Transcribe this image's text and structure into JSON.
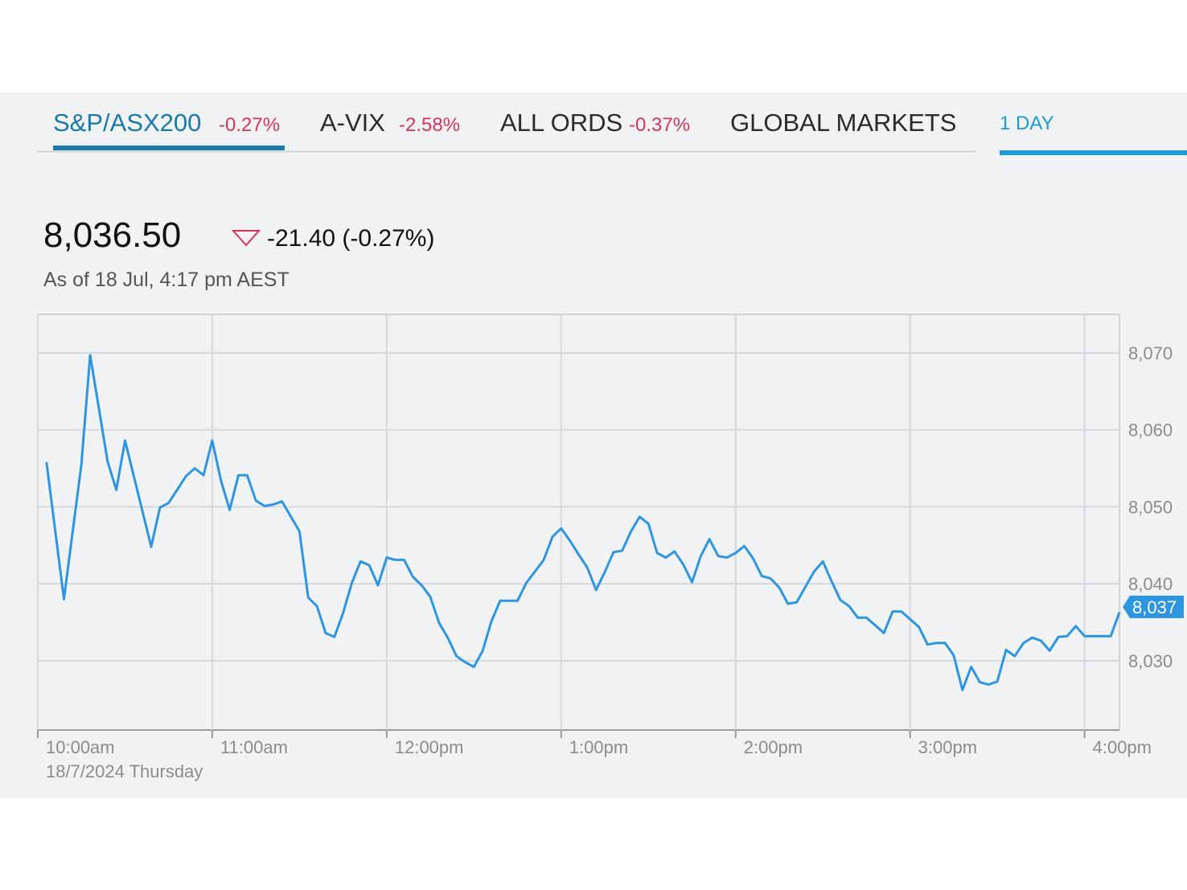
{
  "tabs": [
    {
      "name": "S&P/ASX200",
      "change": "-0.27%"
    },
    {
      "name": "A-VIX",
      "change": "-2.58%"
    },
    {
      "name": "ALL ORDS",
      "change": "-0.37%"
    },
    {
      "name": "GLOBAL MARKETS"
    }
  ],
  "range": "1 DAY",
  "quote": {
    "price": "8,036.50",
    "change": "-21.40 (-0.27%)",
    "as_of": "As of 18 Jul, 4:17 pm AEST"
  },
  "chart_data": {
    "type": "line",
    "date_label": "18/7/2024 Thursday",
    "color": "#2e95e0",
    "x": [
      "10:03",
      "10:09",
      "10:15",
      "10:18",
      "10:24",
      "10:27",
      "10:30",
      "10:36",
      "10:39",
      "10:42",
      "10:45",
      "10:51",
      "10:54",
      "10:57",
      "11:00",
      "11:03",
      "11:06",
      "11:09",
      "11:12",
      "11:15",
      "11:18",
      "11:21",
      "11:24",
      "11:30",
      "11:33",
      "11:36",
      "11:39",
      "11:42",
      "11:45",
      "11:48",
      "11:51",
      "11:54",
      "11:57",
      "12:00",
      "12:03",
      "12:06",
      "12:09",
      "12:12",
      "12:15",
      "12:18",
      "12:21",
      "12:24",
      "12:27",
      "12:30",
      "12:33",
      "12:36",
      "12:39",
      "12:42",
      "12:45",
      "12:48",
      "12:51",
      "12:54",
      "12:57",
      "13:00",
      "13:03",
      "13:06",
      "13:09",
      "13:12",
      "13:15",
      "13:18",
      "13:21",
      "13:24",
      "13:27",
      "13:30",
      "13:33",
      "13:36",
      "13:39",
      "13:42",
      "13:45",
      "13:48",
      "13:51",
      "13:54",
      "13:57",
      "14:00",
      "14:03",
      "14:06",
      "14:09",
      "14:12",
      "14:15",
      "14:18",
      "14:21",
      "14:24",
      "14:27",
      "14:30",
      "14:33",
      "14:36",
      "14:39",
      "14:42",
      "14:45",
      "14:48",
      "14:51",
      "14:54",
      "14:57",
      "15:00",
      "15:03",
      "15:06",
      "15:09",
      "15:12",
      "15:15",
      "15:18",
      "15:21",
      "15:24",
      "15:27",
      "15:30",
      "15:33",
      "15:36",
      "15:39",
      "15:42",
      "15:45",
      "15:48",
      "15:51",
      "15:54",
      "15:57",
      "16:00",
      "16:03",
      "16:06",
      "16:09",
      "16:12"
    ],
    "values": [
      8055.8,
      8038.0,
      8055.5,
      8069.7,
      8055.9,
      8052.2,
      8058.6,
      8049.4,
      8044.8,
      8049.9,
      8050.5,
      8054.0,
      8055.0,
      8054.1,
      8058.6,
      8053.4,
      8049.6,
      8054.1,
      8054.1,
      8050.8,
      8050.1,
      8050.3,
      8050.7,
      8046.8,
      8038.2,
      8037.1,
      8033.6,
      8033.1,
      8036.2,
      8040.1,
      8042.9,
      8042.4,
      8039.8,
      8043.4,
      8043.1,
      8043.1,
      8040.9,
      8039.8,
      8038.3,
      8034.9,
      8033.0,
      8030.6,
      8029.8,
      8029.2,
      8031.3,
      8035.1,
      8037.8,
      8037.8,
      8037.8,
      8040.1,
      8041.6,
      8043.1,
      8046.1,
      8047.2,
      8045.6,
      8043.8,
      8042.1,
      8039.2,
      8041.5,
      8044.1,
      8044.3,
      8046.8,
      8048.7,
      8047.8,
      8044.0,
      8043.4,
      8044.2,
      8042.5,
      8040.2,
      8043.6,
      8045.8,
      8043.6,
      8043.4,
      8044.0,
      8044.9,
      8043.3,
      8041.0,
      8040.7,
      8039.5,
      8037.4,
      8037.6,
      8039.6,
      8041.6,
      8042.9,
      8040.3,
      8037.9,
      8037.1,
      8035.6,
      8035.6,
      8034.6,
      8033.6,
      8036.4,
      8036.4,
      8035.4,
      8034.4,
      8032.1,
      8032.3,
      8032.3,
      8030.7,
      8026.2,
      8029.2,
      8027.2,
      8026.9,
      8027.3,
      8031.4,
      8030.6,
      8032.3,
      8033.0,
      8032.6,
      8031.3,
      8033.1,
      8033.2,
      8034.5,
      8033.2,
      8033.2,
      8033.2,
      8033.2,
      8036.3
    ],
    "xlim": [
      "10:00",
      "16:12"
    ],
    "xticks": [
      {
        "value": "10:00",
        "label": "10:00am"
      },
      {
        "value": "11:00",
        "label": "11:00am"
      },
      {
        "value": "12:00",
        "label": "12:00pm"
      },
      {
        "value": "13:00",
        "label": "1:00pm"
      },
      {
        "value": "14:00",
        "label": "2:00pm"
      },
      {
        "value": "15:00",
        "label": "3:00pm"
      },
      {
        "value": "16:00",
        "label": "4:00pm"
      }
    ],
    "ylim": [
      8021,
      8075
    ],
    "yticks": [
      {
        "value": 8030,
        "label": "8,030"
      },
      {
        "value": 8040,
        "label": "8,040"
      },
      {
        "value": 8050,
        "label": "8,050"
      },
      {
        "value": 8060,
        "label": "8,060"
      },
      {
        "value": 8070,
        "label": "8,070"
      }
    ],
    "last_value_tag": {
      "value": 8037,
      "label": "8,037"
    },
    "grid": true
  }
}
